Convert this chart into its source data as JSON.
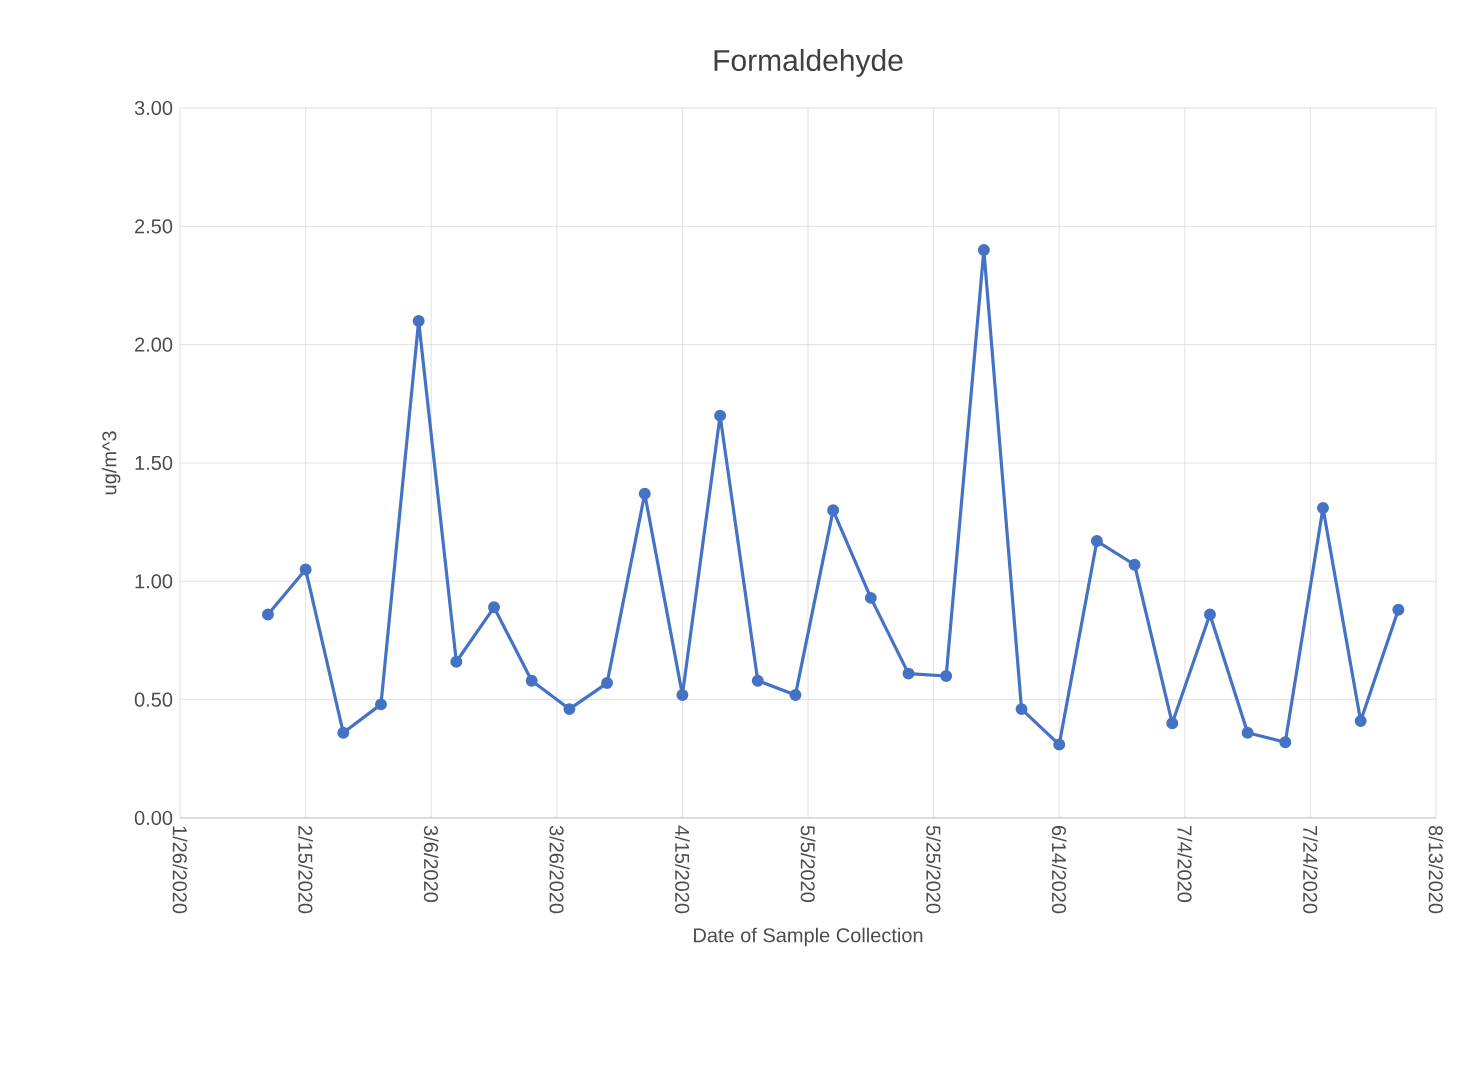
{
  "chart_data": {
    "type": "line",
    "title": "Formaldehyde",
    "xlabel": "Date of Sample Collection",
    "ylabel": "ug/m^3",
    "x": [
      "2020-02-09",
      "2020-02-15",
      "2020-02-21",
      "2020-02-27",
      "2020-03-04",
      "2020-03-10",
      "2020-03-16",
      "2020-03-22",
      "2020-03-28",
      "2020-04-03",
      "2020-04-09",
      "2020-04-15",
      "2020-04-21",
      "2020-04-27",
      "2020-05-03",
      "2020-05-09",
      "2020-05-15",
      "2020-05-21",
      "2020-05-27",
      "2020-06-02",
      "2020-06-08",
      "2020-06-14",
      "2020-06-20",
      "2020-06-26",
      "2020-07-02",
      "2020-07-08",
      "2020-07-14",
      "2020-07-20",
      "2020-07-26",
      "2020-08-01",
      "2020-08-07"
    ],
    "series": [
      {
        "color": "#4472c4",
        "values": [
          0.86,
          1.05,
          0.36,
          0.48,
          2.1,
          0.66,
          0.89,
          0.58,
          0.46,
          0.57,
          1.37,
          0.52,
          1.7,
          0.58,
          0.52,
          1.3,
          0.93,
          0.61,
          0.6,
          2.4,
          0.46,
          0.31,
          1.17,
          1.07,
          0.4,
          0.86,
          0.36,
          0.32,
          1.31,
          0.41,
          0.88
        ]
      }
    ],
    "xlim": [
      "2020-01-26",
      "2020-08-13"
    ],
    "xticks": [
      {
        "value": "2020-01-26",
        "label": "1/26/2020"
      },
      {
        "value": "2020-02-15",
        "label": "2/15/2020"
      },
      {
        "value": "2020-03-06",
        "label": "3/6/2020"
      },
      {
        "value": "2020-03-26",
        "label": "3/26/2020"
      },
      {
        "value": "2020-04-15",
        "label": "4/15/2020"
      },
      {
        "value": "2020-05-05",
        "label": "5/5/2020"
      },
      {
        "value": "2020-05-25",
        "label": "5/25/2020"
      },
      {
        "value": "2020-06-14",
        "label": "6/14/2020"
      },
      {
        "value": "2020-07-04",
        "label": "7/4/2020"
      },
      {
        "value": "2020-07-24",
        "label": "7/24/2020"
      },
      {
        "value": "2020-08-13",
        "label": "8/13/2020"
      }
    ],
    "ylim": [
      0,
      3
    ],
    "yticks": [
      {
        "value": 0,
        "label": "0.00"
      },
      {
        "value": 0.5,
        "label": "0.50"
      },
      {
        "value": 1,
        "label": "1.00"
      },
      {
        "value": 1.5,
        "label": "1.50"
      },
      {
        "value": 2,
        "label": "2.00"
      },
      {
        "value": 2.5,
        "label": "2.50"
      },
      {
        "value": 3,
        "label": "3.00"
      }
    ],
    "grid": true,
    "marker": "circle",
    "line_style": "solid"
  }
}
